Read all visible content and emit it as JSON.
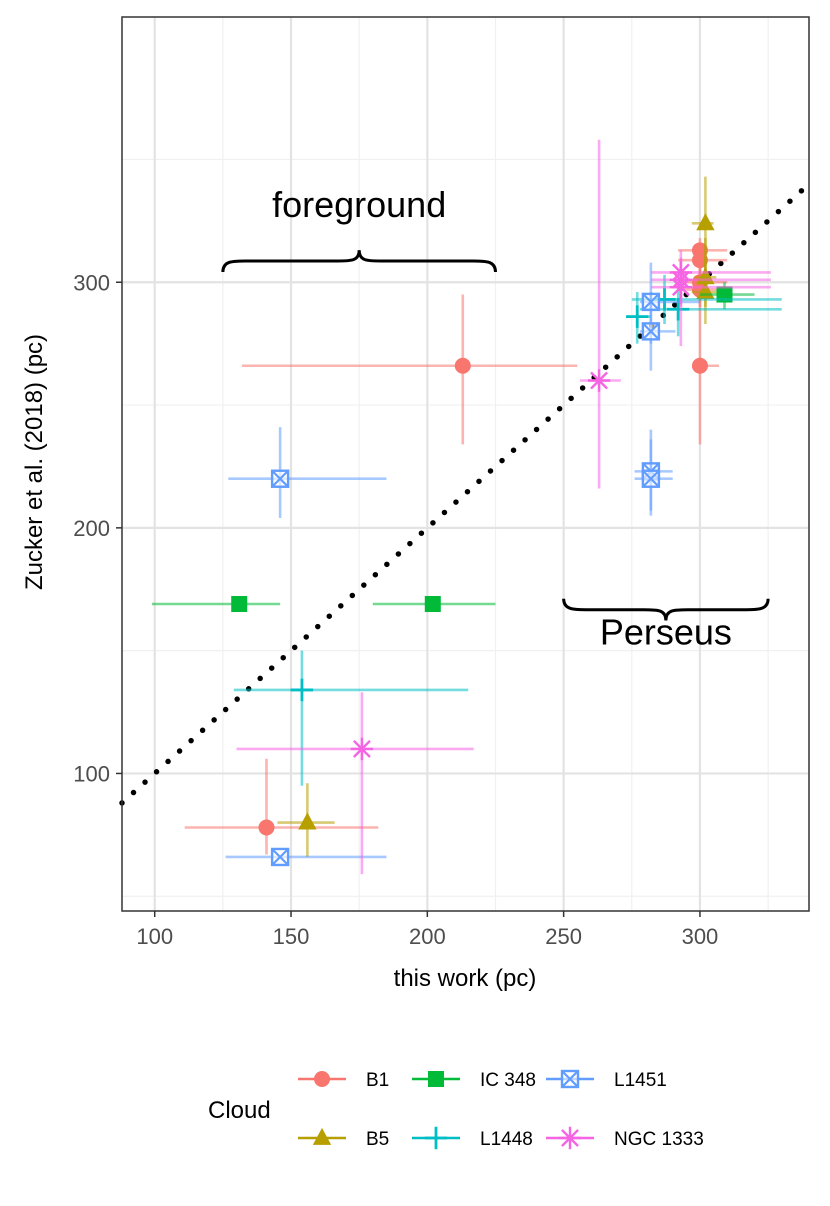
{
  "chart_data": {
    "type": "scatter",
    "title": "",
    "xlabel": "this work (pc)",
    "ylabel": "Zucker et al. (2018) (pc)",
    "xlim": [
      88,
      340
    ],
    "ylim": [
      44,
      408
    ],
    "xticks": [
      100,
      150,
      200,
      250,
      300
    ],
    "yticks": [
      100,
      200,
      300
    ],
    "grid": true,
    "reference_line": {
      "style": "dotted",
      "slope": 1,
      "intercept": 0
    },
    "annotations": [
      {
        "text": "foreground",
        "x_range": [
          125,
          225
        ],
        "y": 310,
        "brace": "below-text",
        "brace_y": 305
      },
      {
        "text": "Perseus",
        "x_range": [
          250,
          325
        ],
        "y": 155,
        "brace": "above-text",
        "brace_y": 185
      }
    ],
    "legend": {
      "title": "Cloud",
      "position": "bottom"
    },
    "series": [
      {
        "name": "B1",
        "color": "#F8766D",
        "marker": "circle",
        "points": [
          {
            "x": 213,
            "y": 266,
            "xerr": [
              132,
              255
            ],
            "yerr": [
              234,
              295
            ]
          },
          {
            "x": 141,
            "y": 78,
            "xerr": [
              111,
              182
            ],
            "yerr": [
              67,
              106
            ]
          },
          {
            "x": 300,
            "y": 266,
            "xerr": [
              300,
              307
            ],
            "yerr": [
              234,
              295
            ]
          },
          {
            "x": 300,
            "y": 313,
            "xerr": [
              292,
              310
            ],
            "yerr": [
              300,
              318
            ]
          },
          {
            "x": 300,
            "y": 309,
            "xerr": [
              292,
              310
            ],
            "yerr": [
              300,
              315
            ]
          },
          {
            "x": 300,
            "y": 300,
            "xerr": [
              292,
              310
            ],
            "yerr": [
              292,
              310
            ]
          },
          {
            "x": 300,
            "y": 297,
            "xerr": [
              292,
              310
            ],
            "yerr": [
              290,
              305
            ]
          }
        ]
      },
      {
        "name": "B5",
        "color": "#B79F00",
        "marker": "triangle",
        "points": [
          {
            "x": 156,
            "y": 80,
            "xerr": [
              145,
              166
            ],
            "yerr": [
              66,
              96
            ]
          },
          {
            "x": 302,
            "y": 324,
            "xerr": [
              297,
              305
            ],
            "yerr": [
              300,
              343
            ]
          },
          {
            "x": 302,
            "y": 302,
            "xerr": [
              298,
              306
            ],
            "yerr": [
              290,
              318
            ]
          },
          {
            "x": 302,
            "y": 296,
            "xerr": [
              297,
              307
            ],
            "yerr": [
              283,
              310
            ]
          }
        ]
      },
      {
        "name": "IC 348",
        "color": "#00BA38",
        "marker": "square",
        "points": [
          {
            "x": 131,
            "y": 169,
            "xerr": [
              99,
              146
            ],
            "yerr": [
              169,
              169
            ]
          },
          {
            "x": 202,
            "y": 169,
            "xerr": [
              180,
              225
            ],
            "yerr": [
              169,
              169
            ]
          },
          {
            "x": 309,
            "y": 295,
            "xerr": [
              300,
              320
            ],
            "yerr": [
              289,
              300
            ]
          }
        ]
      },
      {
        "name": "L1448",
        "color": "#00BFC4",
        "marker": "plus",
        "points": [
          {
            "x": 154,
            "y": 134,
            "xerr": [
              129,
              215
            ],
            "yerr": [
              95,
              150
            ]
          },
          {
            "x": 277,
            "y": 286,
            "xerr": [
              273,
              282
            ],
            "yerr": [
              275,
              296
            ]
          },
          {
            "x": 287,
            "y": 293,
            "xerr": [
              275,
              330
            ],
            "yerr": [
              283,
              303
            ]
          },
          {
            "x": 292,
            "y": 289,
            "xerr": [
              278,
              330
            ],
            "yerr": [
              278,
              300
            ]
          }
        ]
      },
      {
        "name": "L1451",
        "color": "#619CFF",
        "marker": "square-cross",
        "points": [
          {
            "x": 146,
            "y": 220,
            "xerr": [
              127,
              185
            ],
            "yerr": [
              204,
              241
            ]
          },
          {
            "x": 146,
            "y": 66,
            "xerr": [
              126,
              185
            ],
            "yerr": [
              66,
              66
            ]
          },
          {
            "x": 282,
            "y": 292,
            "xerr": [
              278,
              300
            ],
            "yerr": [
              275,
              308
            ]
          },
          {
            "x": 282,
            "y": 280,
            "xerr": [
              278,
              291
            ],
            "yerr": [
              264,
              296
            ]
          },
          {
            "x": 282,
            "y": 223,
            "xerr": [
              276,
              290
            ],
            "yerr": [
              207,
              240
            ]
          },
          {
            "x": 282,
            "y": 220,
            "xerr": [
              276,
              290
            ],
            "yerr": [
              205,
              236
            ]
          }
        ]
      },
      {
        "name": "NGC 1333",
        "color": "#F564E3",
        "marker": "asterisk",
        "points": [
          {
            "x": 176,
            "y": 110,
            "xerr": [
              130,
              217
            ],
            "yerr": [
              59,
              133
            ]
          },
          {
            "x": 263,
            "y": 260,
            "xerr": [
              256,
              271
            ],
            "yerr": [
              216,
              358
            ]
          },
          {
            "x": 293,
            "y": 304,
            "xerr": [
              282,
              326
            ],
            "yerr": [
              291,
              313
            ]
          },
          {
            "x": 293,
            "y": 298,
            "xerr": [
              282,
              326
            ],
            "yerr": [
              274,
              305
            ]
          },
          {
            "x": 293,
            "y": 301,
            "xerr": [
              282,
              326
            ],
            "yerr": [
              290,
              310
            ]
          }
        ]
      }
    ]
  }
}
